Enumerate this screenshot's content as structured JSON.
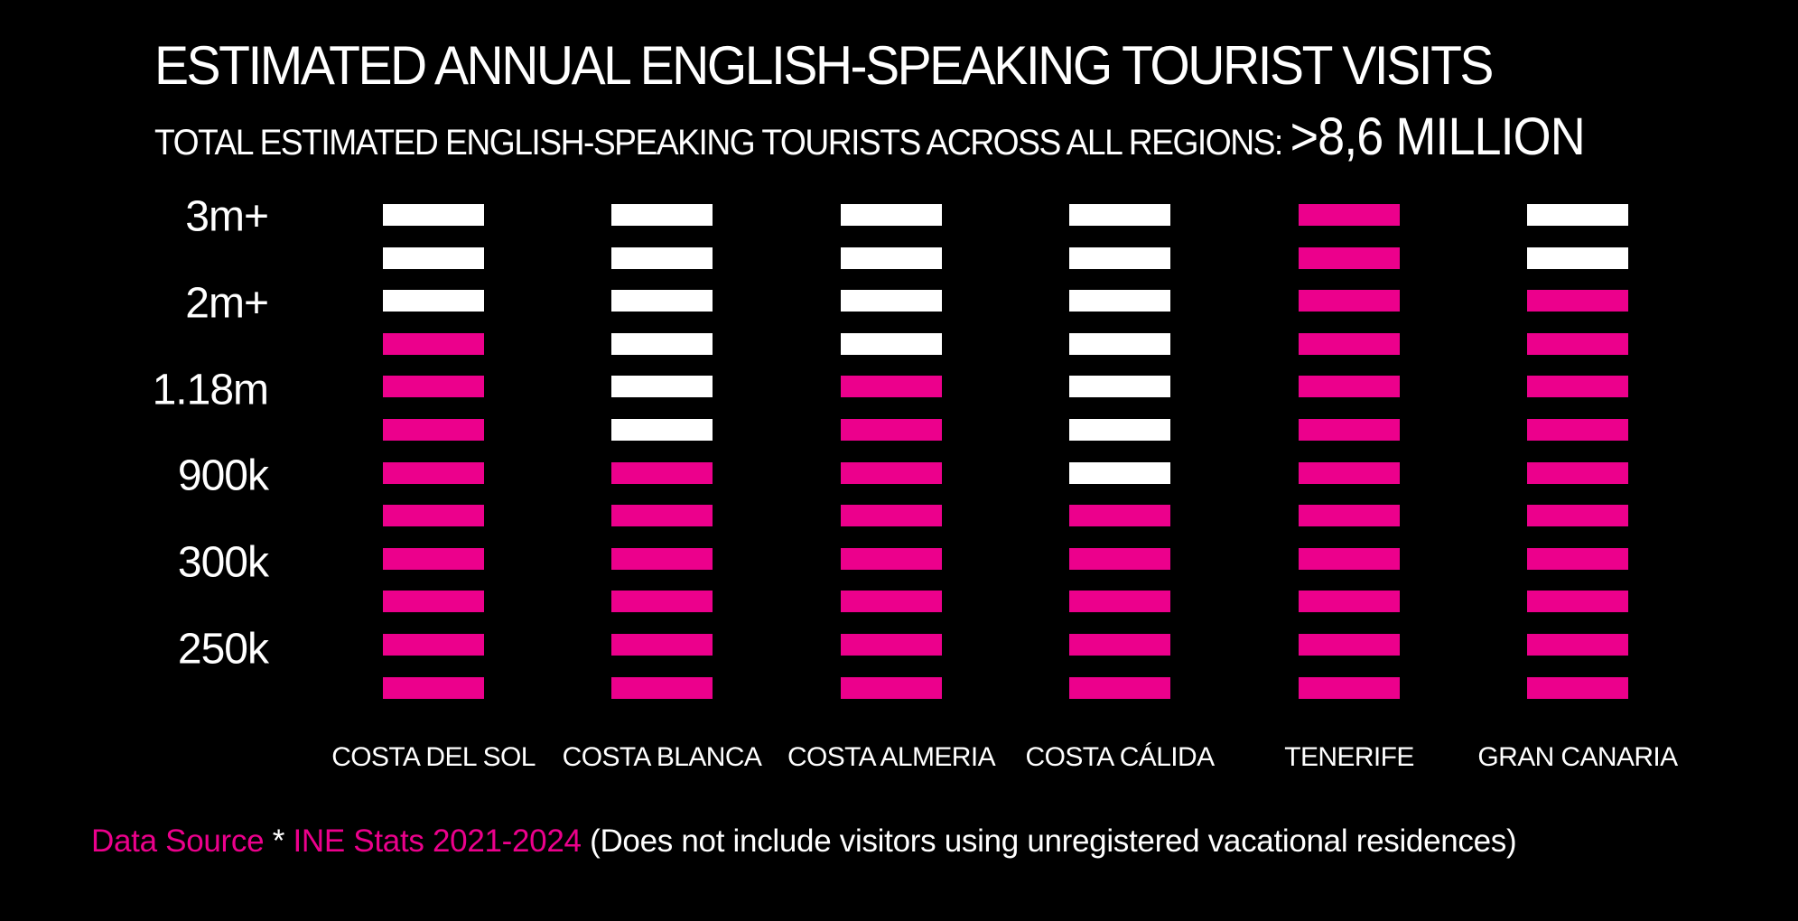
{
  "title": "ESTIMATED ANNUAL ENGLISH-SPEAKING TOURIST VISITS",
  "subtitle_prefix": "TOTAL ESTIMATED ENGLISH-SPEAKING TOURISTS ACROSS ALL REGIONS: ",
  "subtitle_total": ">8,6 MILLION",
  "colors": {
    "background": "#000000",
    "filled": "#ec008c",
    "empty": "#ffffff"
  },
  "chart_data": {
    "type": "bar",
    "segments_per_bar": 12,
    "y_tick_labels": [
      "3m+",
      "2m+",
      "1.18m",
      "900k",
      "300k",
      "250k"
    ],
    "categories": [
      "COSTA DEL SOL",
      "COSTA BLANCA",
      "COSTA ALMERIA",
      "COSTA CÁLIDA",
      "TENERIFE",
      "GRAN CANARIA"
    ],
    "filled_segments": [
      9,
      6,
      8,
      5,
      12,
      10
    ]
  },
  "footer": {
    "source_label": "Data Source",
    "asterisk": " * ",
    "source_name": "INE Stats 2021-2024",
    "note": " (Does not include visitors using unregistered vacational residences)"
  }
}
